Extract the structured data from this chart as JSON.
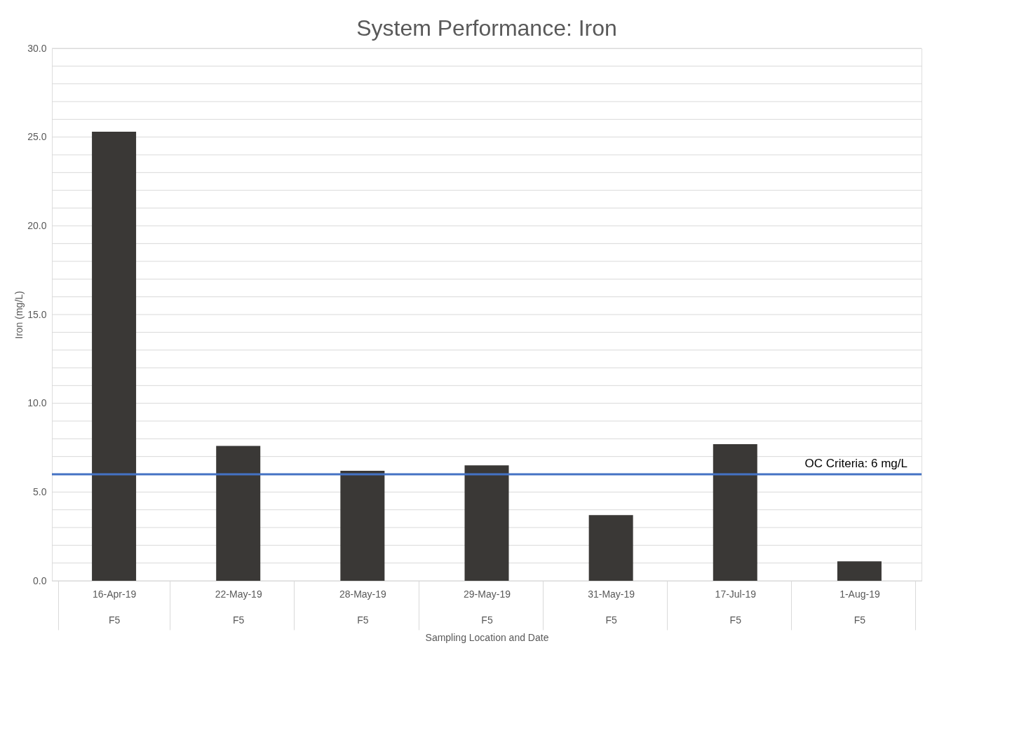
{
  "chart_data": {
    "type": "bar",
    "title": "System Performance: Iron",
    "xlabel": "Sampling Location and Date",
    "ylabel": "Iron (mg/L)",
    "categories": [
      "16-Apr-19\nF5",
      "22-May-19\nF5",
      "28-May-19\nF5",
      "29-May-19\nF5",
      "31-May-19\nF5",
      "17-Jul-19\nF5",
      "1-Aug-19\nF5"
    ],
    "values": [
      25.3,
      7.6,
      6.2,
      6.5,
      3.7,
      7.7,
      1.1
    ],
    "color": "#3a3836",
    "ylim": [
      0,
      30
    ],
    "yticks": [
      {
        "value": 0,
        "label": "0.0"
      },
      {
        "value": 1,
        "label": null
      },
      {
        "value": 2,
        "label": null
      },
      {
        "value": 3,
        "label": null
      },
      {
        "value": 4,
        "label": null
      },
      {
        "value": 5,
        "label": "5.0"
      },
      {
        "value": 6,
        "label": null
      },
      {
        "value": 7,
        "label": null
      },
      {
        "value": 8,
        "label": null
      },
      {
        "value": 9,
        "label": null
      },
      {
        "value": 10,
        "label": "10.0"
      },
      {
        "value": 11,
        "label": null
      },
      {
        "value": 12,
        "label": null
      },
      {
        "value": 13,
        "label": null
      },
      {
        "value": 14,
        "label": null
      },
      {
        "value": 15,
        "label": "15.0"
      },
      {
        "value": 16,
        "label": null
      },
      {
        "value": 17,
        "label": null
      },
      {
        "value": 18,
        "label": null
      },
      {
        "value": 19,
        "label": null
      },
      {
        "value": 20,
        "label": "20.0"
      },
      {
        "value": 21,
        "label": null
      },
      {
        "value": 22,
        "label": null
      },
      {
        "value": 23,
        "label": null
      },
      {
        "value": 24,
        "label": null
      },
      {
        "value": 25,
        "label": "25.0"
      },
      {
        "value": 26,
        "label": null
      },
      {
        "value": 27,
        "label": null
      },
      {
        "value": 28,
        "label": null
      },
      {
        "value": 29,
        "label": null
      },
      {
        "value": 30,
        "label": "30.0"
      }
    ],
    "grid": "y",
    "ref_lines": [
      {
        "axis": "y",
        "value": 6,
        "label": "OC Criteria: 6 mg/L",
        "color": "#4472c4"
      }
    ]
  }
}
